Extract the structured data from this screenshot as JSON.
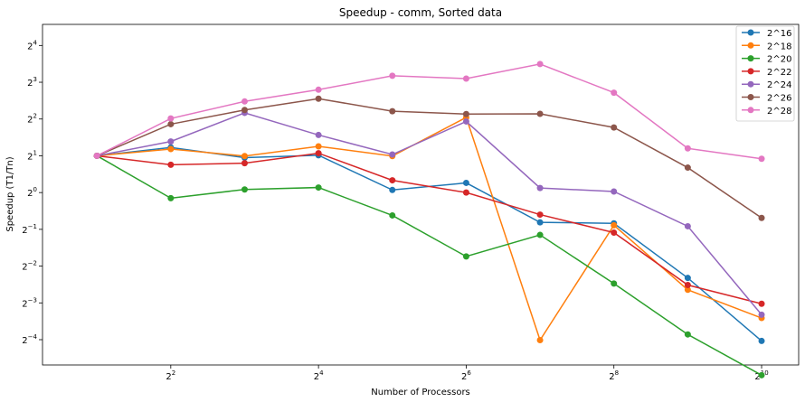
{
  "chart_data": {
    "type": "line",
    "title": "Speedup - comm, Sorted data",
    "xlabel": "Number of Processors",
    "ylabel": "Speedup (T1/Tn)",
    "x_scale": "log2",
    "y_scale": "log2",
    "x": [
      2,
      4,
      8,
      16,
      32,
      64,
      128,
      256,
      512,
      1024
    ],
    "xlim": [
      1.2,
      1450
    ],
    "ylim": [
      0.0388,
      23.8
    ],
    "x_ticks": [
      {
        "value": 4,
        "base": "2",
        "exp": "2"
      },
      {
        "value": 16,
        "base": "2",
        "exp": "4"
      },
      {
        "value": 64,
        "base": "2",
        "exp": "6"
      },
      {
        "value": 256,
        "base": "2",
        "exp": "8"
      },
      {
        "value": 1024,
        "base": "2",
        "exp": "10"
      }
    ],
    "y_ticks": [
      {
        "value": 16,
        "base": "2",
        "exp": "4"
      },
      {
        "value": 8,
        "base": "2",
        "exp": "3"
      },
      {
        "value": 4,
        "base": "2",
        "exp": "2"
      },
      {
        "value": 2,
        "base": "2",
        "exp": "1"
      },
      {
        "value": 1,
        "base": "2",
        "exp": "0"
      },
      {
        "value": 0.5,
        "base": "2",
        "exp": "−1"
      },
      {
        "value": 0.25,
        "base": "2",
        "exp": "−2"
      },
      {
        "value": 0.125,
        "base": "2",
        "exp": "−3"
      },
      {
        "value": 0.0625,
        "base": "2",
        "exp": "−4"
      }
    ],
    "grid": false,
    "legend_position": "top-right",
    "series": [
      {
        "name": "2^16",
        "color": "#1f77b4",
        "values": [
          2.0,
          2.34,
          1.93,
          2.02,
          1.05,
          1.2,
          0.57,
          0.56,
          0.2,
          0.061
        ]
      },
      {
        "name": "2^18",
        "color": "#ff7f0e",
        "values": [
          2.0,
          2.27,
          1.99,
          2.39,
          1.99,
          4.12,
          0.062,
          0.54,
          0.16,
          0.094
        ]
      },
      {
        "name": "2^20",
        "color": "#2ca02c",
        "values": [
          2.0,
          0.9,
          1.06,
          1.1,
          0.65,
          0.3,
          0.45,
          0.18,
          0.069,
          0.032
        ]
      },
      {
        "name": "2^22",
        "color": "#d62728",
        "values": [
          2.0,
          1.69,
          1.74,
          2.1,
          1.26,
          1.0,
          0.66,
          0.47,
          0.175,
          0.123
        ]
      },
      {
        "name": "2^24",
        "color": "#9467bd",
        "values": [
          2.0,
          2.62,
          4.49,
          2.96,
          2.05,
          3.82,
          1.09,
          1.02,
          0.53,
          0.1
        ]
      },
      {
        "name": "2^26",
        "color": "#8c564b",
        "values": [
          2.0,
          3.63,
          4.74,
          5.87,
          4.63,
          4.39,
          4.41,
          3.41,
          1.6,
          0.62
        ]
      },
      {
        "name": "2^28",
        "color": "#e377c2",
        "values": [
          2.0,
          4.04,
          5.57,
          6.95,
          9.04,
          8.57,
          11.27,
          6.57,
          2.3,
          1.89
        ]
      }
    ]
  }
}
